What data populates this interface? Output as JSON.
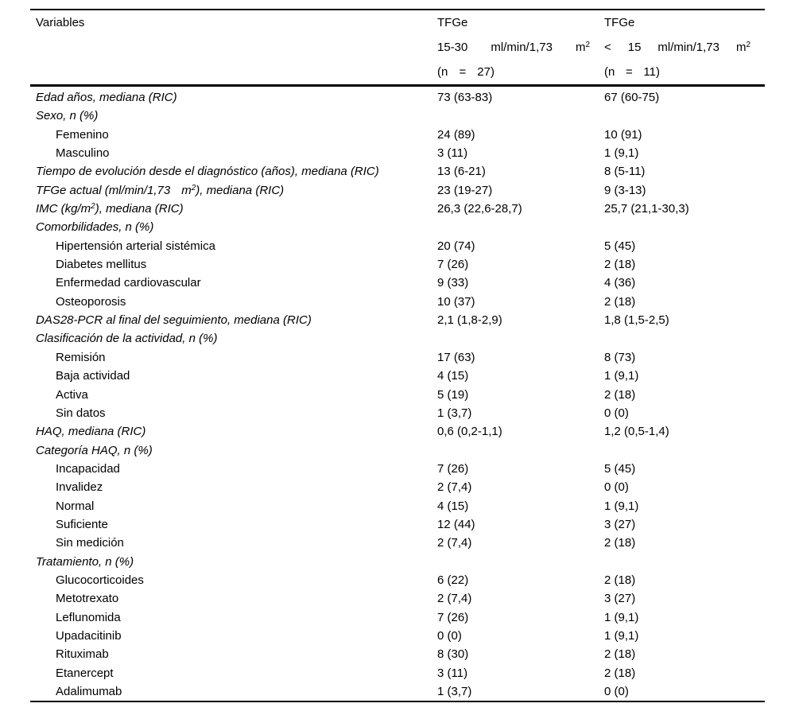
{
  "colors": {
    "text": "#000000",
    "background": "#ffffff",
    "rule": "#000000"
  },
  "table": {
    "header": {
      "variables_label": "Variables",
      "columns": [
        {
          "title": "TFGe",
          "range": [
            {
              "t": "15-30"
            },
            {
              "t": "ml/min/1,73"
            },
            {
              "t": "m",
              "sup": "2"
            }
          ],
          "n": [
            "(n",
            "=",
            "27)"
          ]
        },
        {
          "title": "TFGe",
          "range": [
            {
              "t": "<"
            },
            {
              "t": "15"
            },
            {
              "t": "ml/min/1,73"
            },
            {
              "t": "m",
              "sup": "2"
            }
          ],
          "n": [
            "(n",
            "=",
            "11)"
          ]
        }
      ]
    },
    "rows": [
      {
        "label": "Edad años, mediana (RIC)",
        "style": "cat",
        "v": [
          "73 (63-83)",
          "67 (60-75)"
        ]
      },
      {
        "label": "Sexo, n (%)",
        "style": "cat",
        "v": [
          "",
          ""
        ]
      },
      {
        "label": "Femenino",
        "style": "item",
        "v": [
          "24 (89)",
          "10 (91)"
        ]
      },
      {
        "label": "Masculino",
        "style": "item",
        "v": [
          "3 (11)",
          "1 (9,1)"
        ]
      },
      {
        "label": "Tiempo de evolución desde el diagnóstico (años), mediana (RIC)",
        "style": "cat",
        "v": [
          "13 (6-21)",
          "8 (5-11)"
        ]
      },
      {
        "label": [
          {
            "t": "TFGe actual (ml/min/1,73"
          },
          {
            "gap": 14
          },
          {
            "t": "m",
            "sup": "2"
          },
          {
            "t": "), mediana (RIC)"
          }
        ],
        "style": "cat",
        "v": [
          "23 (19-27)",
          "9 (3-13)"
        ]
      },
      {
        "label": [
          {
            "t": "IMC (kg/m",
            "sup": "2"
          },
          {
            "t": "), mediana (RIC)"
          }
        ],
        "style": "cat",
        "v": [
          "26,3 (22,6-28,7)",
          "25,7 (21,1-30,3)"
        ]
      },
      {
        "label": "Comorbilidades, n (%)",
        "style": "cat",
        "v": [
          "",
          ""
        ]
      },
      {
        "label": "Hipertensión arterial sistémica",
        "style": "item",
        "v": [
          "20 (74)",
          "5 (45)"
        ]
      },
      {
        "label": "Diabetes mellitus",
        "style": "item",
        "v": [
          "7 (26)",
          "2 (18)"
        ]
      },
      {
        "label": "Enfermedad cardiovascular",
        "style": "item",
        "v": [
          "9 (33)",
          "4 (36)"
        ]
      },
      {
        "label": "Osteoporosis",
        "style": "item",
        "v": [
          "10 (37)",
          "2 (18)"
        ]
      },
      {
        "label": "DAS28-PCR al final del seguimiento, mediana (RIC)",
        "style": "cat",
        "v": [
          "2,1 (1,8-2,9)",
          "1,8 (1,5-2,5)"
        ]
      },
      {
        "label": "Clasificación de la actividad, n (%)",
        "style": "cat",
        "v": [
          "",
          ""
        ]
      },
      {
        "label": "Remisión",
        "style": "item",
        "v": [
          "17 (63)",
          "8 (73)"
        ]
      },
      {
        "label": "Baja actividad",
        "style": "item",
        "v": [
          "4 (15)",
          "1 (9,1)"
        ]
      },
      {
        "label": "Activa",
        "style": "item",
        "v": [
          "5 (19)",
          "2 (18)"
        ]
      },
      {
        "label": "Sin datos",
        "style": "item",
        "v": [
          "1 (3,7)",
          "0 (0)"
        ]
      },
      {
        "label": "HAQ, mediana (RIC)",
        "style": "cat",
        "v": [
          "0,6 (0,2-1,1)",
          "1,2 (0,5-1,4)"
        ]
      },
      {
        "label": "Categoría HAQ, n (%)",
        "style": "cat",
        "v": [
          "",
          ""
        ]
      },
      {
        "label": "Incapacidad",
        "style": "item",
        "v": [
          "7 (26)",
          "5 (45)"
        ]
      },
      {
        "label": "Invalidez",
        "style": "item",
        "v": [
          "2 (7,4)",
          "0 (0)"
        ]
      },
      {
        "label": "Normal",
        "style": "item",
        "v": [
          "4 (15)",
          "1 (9,1)"
        ]
      },
      {
        "label": "Suficiente",
        "style": "item",
        "v": [
          "12 (44)",
          "3 (27)"
        ]
      },
      {
        "label": "Sin medición",
        "style": "item",
        "v": [
          "2 (7,4)",
          "2 (18)"
        ]
      },
      {
        "label": "Tratamiento, n (%)",
        "style": "cat",
        "v": [
          "",
          ""
        ]
      },
      {
        "label": "Glucocorticoides",
        "style": "item",
        "v": [
          "6 (22)",
          "2 (18)"
        ]
      },
      {
        "label": "Metotrexato",
        "style": "item",
        "v": [
          "2 (7,4)",
          "3 (27)"
        ]
      },
      {
        "label": "Leflunomida",
        "style": "item",
        "v": [
          "7 (26)",
          "1 (9,1)"
        ]
      },
      {
        "label": "Upadacitinib",
        "style": "item",
        "v": [
          "0 (0)",
          "1 (9,1)"
        ]
      },
      {
        "label": "Rituximab",
        "style": "item",
        "v": [
          "8 (30)",
          "2 (18)"
        ]
      },
      {
        "label": "Etanercept",
        "style": "item",
        "v": [
          "3 (11)",
          "2 (18)"
        ]
      },
      {
        "label": "Adalimumab",
        "style": "item",
        "v": [
          "1 (3,7)",
          "0 (0)"
        ]
      }
    ]
  }
}
